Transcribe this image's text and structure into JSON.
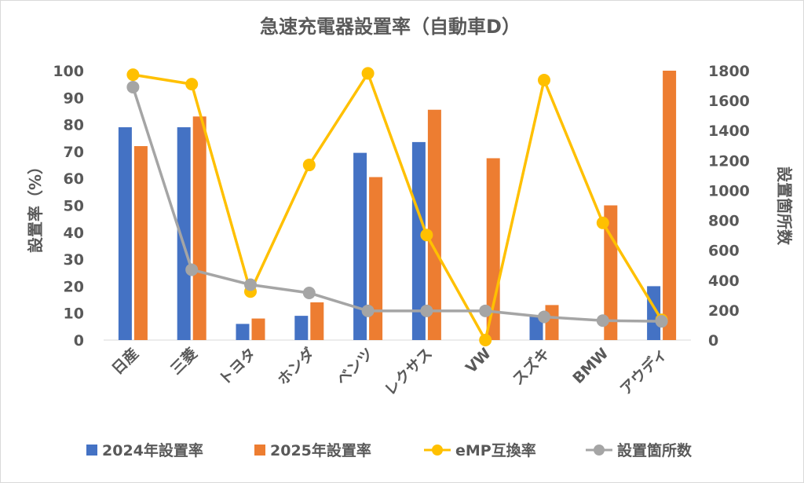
{
  "chart_data": {
    "type": "bar",
    "title": "急速充電器設置率（自動車D）",
    "categories": [
      "日産",
      "三菱",
      "トヨタ",
      "ホンダ",
      "ベンツ",
      "レクサス",
      "VW",
      "スズキ",
      "BMW",
      "アウディ"
    ],
    "y_left": {
      "label": "設置率（%）",
      "min": 0,
      "max": 100,
      "ticks": [
        "0",
        "10",
        "20",
        "30",
        "40",
        "50",
        "60",
        "70",
        "80",
        "90",
        "100"
      ]
    },
    "y_right": {
      "label": "設置箇所数",
      "min": 0,
      "max": 1800,
      "ticks": [
        "0",
        "200",
        "400",
        "600",
        "800",
        "1000",
        "1200",
        "1400",
        "1600",
        "1800"
      ]
    },
    "series": [
      {
        "name": "2024年設置率",
        "type": "bar",
        "axis": "left",
        "color": "#4472c4",
        "values": [
          79,
          79,
          6,
          9,
          69.5,
          73.5,
          null,
          9,
          null,
          20
        ]
      },
      {
        "name": "2025年設置率",
        "type": "bar",
        "axis": "left",
        "color": "#ed7d31",
        "values": [
          72,
          83,
          8,
          14,
          60.5,
          85.5,
          67.5,
          13,
          50,
          100
        ]
      },
      {
        "name": "eMP互換率",
        "type": "line",
        "axis": "left",
        "color": "#ffc000",
        "values": [
          98.5,
          95,
          18,
          65,
          99,
          39,
          0,
          96.5,
          43.5,
          7.5
        ]
      },
      {
        "name": "設置箇所数",
        "type": "line",
        "axis": "right",
        "color": "#a5a5a5",
        "values": [
          1690,
          470,
          370,
          315,
          195,
          195,
          195,
          155,
          130,
          125
        ]
      }
    ],
    "legend_position": "bottom",
    "grid": false
  }
}
